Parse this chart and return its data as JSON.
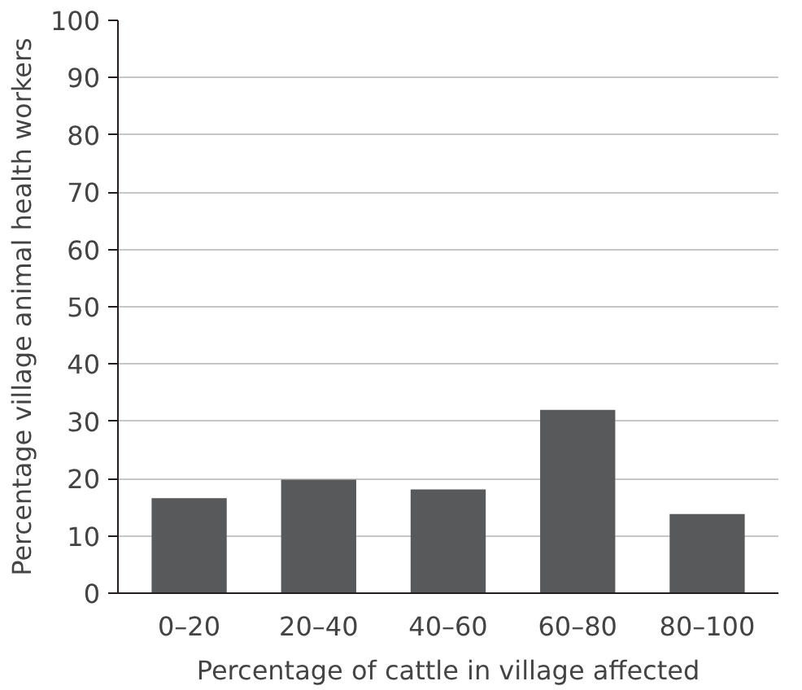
{
  "chart_data": {
    "type": "bar",
    "xlabel": "Percentage of cattle in village affected",
    "ylabel": "Percentage village animal health workers",
    "categories": [
      "0–20",
      "20–40",
      "40–60",
      "60–80",
      "80–100"
    ],
    "values": [
      16.6,
      19.8,
      18.1,
      32,
      13.8
    ],
    "color": "#58595b",
    "ylim": [
      0,
      100
    ],
    "yticks": [
      0,
      10,
      20,
      30,
      40,
      50,
      60,
      70,
      80,
      90,
      100
    ],
    "grid": "y"
  }
}
